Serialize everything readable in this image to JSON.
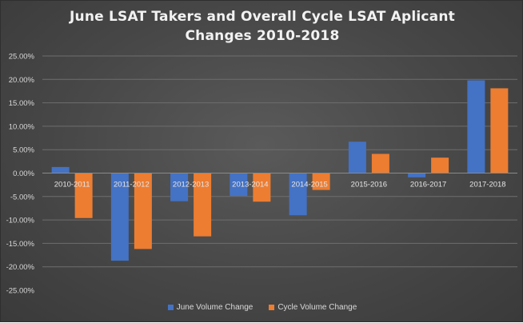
{
  "chart_data": {
    "type": "bar",
    "title_lines": [
      "June LSAT Takers and Overall Cycle LSAT Aplicant",
      "Changes 2010-2018"
    ],
    "categories": [
      "2010-2011",
      "2011-2012",
      "2012-2013",
      "2013-2014",
      "2014-2015",
      "2015-2016",
      "2016-2017",
      "2017-2018"
    ],
    "series": [
      {
        "name": "June Volume Change",
        "color": "#4472c4",
        "values": [
          1.3,
          -18.7,
          -6.0,
          -4.9,
          -9.0,
          6.7,
          -0.9,
          19.8
        ]
      },
      {
        "name": "Cycle Volume Change",
        "color": "#ed7d31",
        "values": [
          -9.6,
          -16.2,
          -13.5,
          -6.1,
          -3.6,
          4.1,
          3.3,
          18.1
        ]
      }
    ],
    "yticks": [
      "25.00%",
      "20.00%",
      "15.00%",
      "10.00%",
      "5.00%",
      "0.00%",
      "-5.00%",
      "-10.00%",
      "-15.00%",
      "-20.00%",
      "-25.00%"
    ],
    "ylim": [
      -25,
      25
    ],
    "grid": true,
    "legend_position": "bottom"
  }
}
